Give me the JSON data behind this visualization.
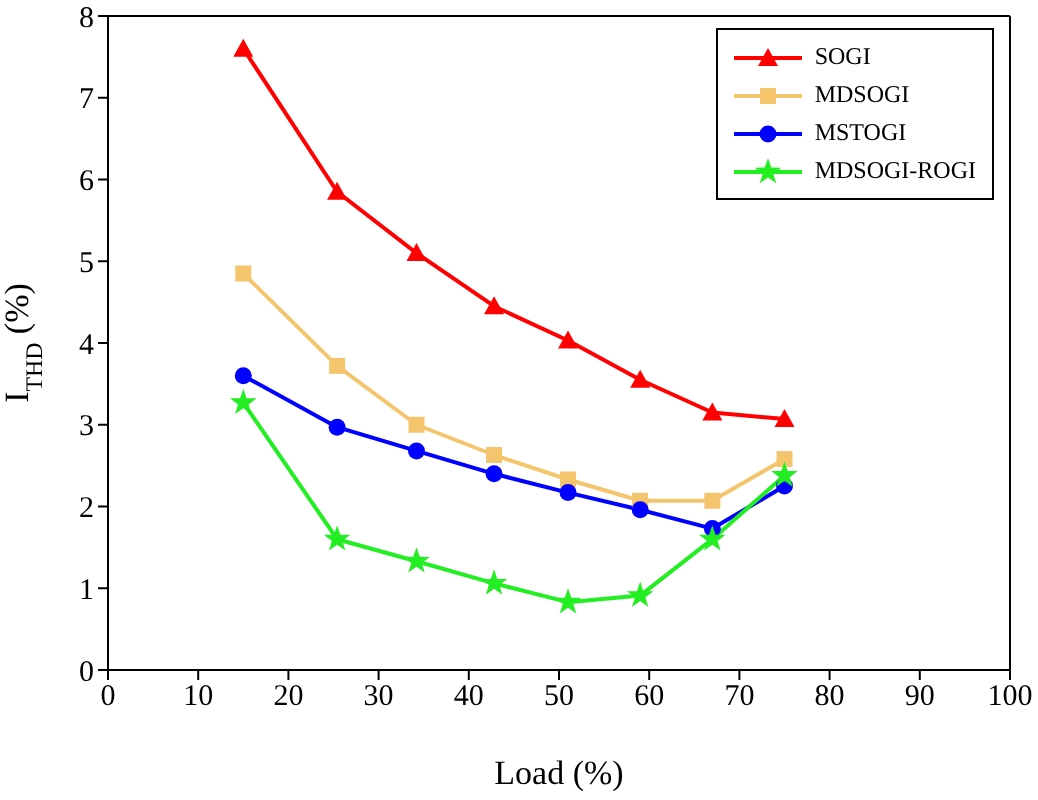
{
  "chart_data": {
    "type": "line",
    "xlabel": "Load (%)",
    "ylabel": "I$_{THD}$ (%)",
    "x": [
      15,
      25.4,
      34.2,
      42.8,
      51,
      59,
      67,
      75
    ],
    "xlim": [
      0,
      100
    ],
    "xticks": [
      0,
      10,
      20,
      30,
      40,
      50,
      60,
      70,
      80,
      90,
      100
    ],
    "ylim": [
      0,
      8
    ],
    "yticks": [
      0,
      1,
      2,
      3,
      4,
      5,
      6,
      7,
      8
    ],
    "grid": false,
    "legend": "top right",
    "series": [
      {
        "name": "SOGI",
        "color": "#ff0000",
        "marker": "triangle",
        "values": [
          7.6,
          5.85,
          5.1,
          4.45,
          4.03,
          3.55,
          3.15,
          3.07
        ]
      },
      {
        "name": "MDSOGI",
        "color": "#f5c56e",
        "marker": "square",
        "values": [
          4.85,
          3.72,
          3.0,
          2.63,
          2.33,
          2.07,
          2.07,
          2.58
        ]
      },
      {
        "name": "MSTOGI",
        "color": "#0000ff",
        "marker": "circle",
        "values": [
          3.6,
          2.97,
          2.68,
          2.4,
          2.17,
          1.96,
          1.73,
          2.25
        ]
      },
      {
        "name": "MDSOGI-ROGI",
        "color": "#22ee22",
        "marker": "star",
        "values": [
          3.27,
          1.6,
          1.33,
          1.06,
          0.83,
          0.91,
          1.6,
          2.38
        ]
      }
    ]
  }
}
